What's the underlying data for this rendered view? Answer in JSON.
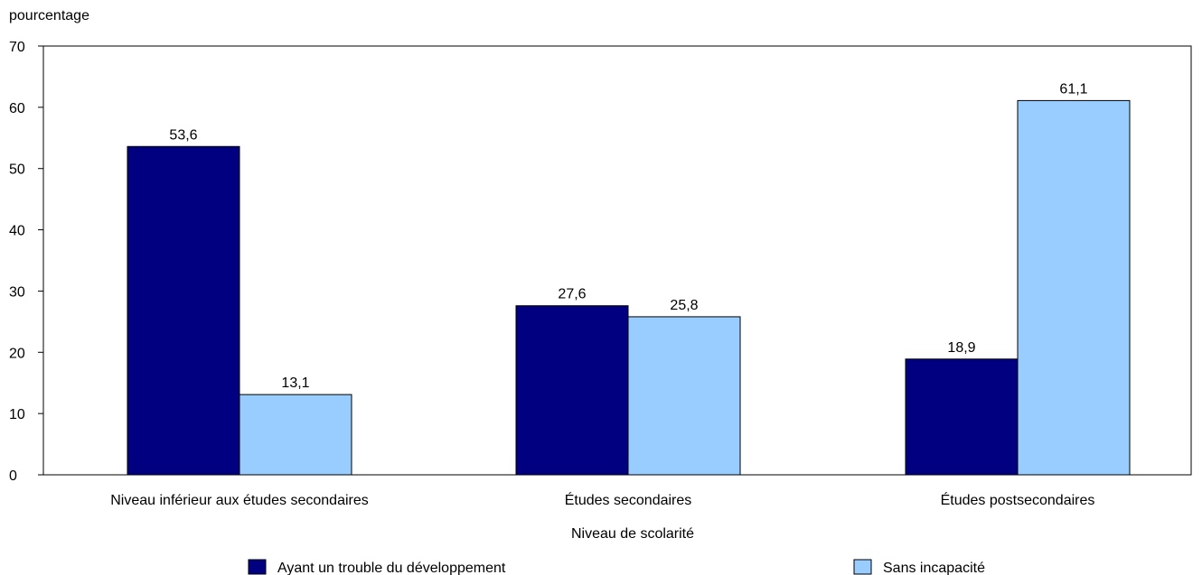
{
  "chart_data": {
    "type": "bar",
    "ylabel": "pourcentage",
    "xlabel": "Niveau de scolarité",
    "ylim": [
      0,
      70
    ],
    "yticks": [
      0,
      10,
      20,
      30,
      40,
      50,
      60,
      70
    ],
    "categories": [
      "Niveau inférieur aux études secondaires",
      "Études secondaires",
      "Études postsecondaires"
    ],
    "series": [
      {
        "name": "Ayant un trouble du développement",
        "color": "#000080",
        "values": [
          53.6,
          27.6,
          18.9
        ],
        "labels": [
          "53,6",
          "27,6",
          "18,9"
        ]
      },
      {
        "name": "Sans incapacité",
        "color": "#99CCFF",
        "values": [
          13.1,
          25.8,
          61.1
        ],
        "labels": [
          "13,1",
          "25,8",
          "61,1"
        ]
      }
    ],
    "legend_position": "bottom",
    "grid": false
  }
}
